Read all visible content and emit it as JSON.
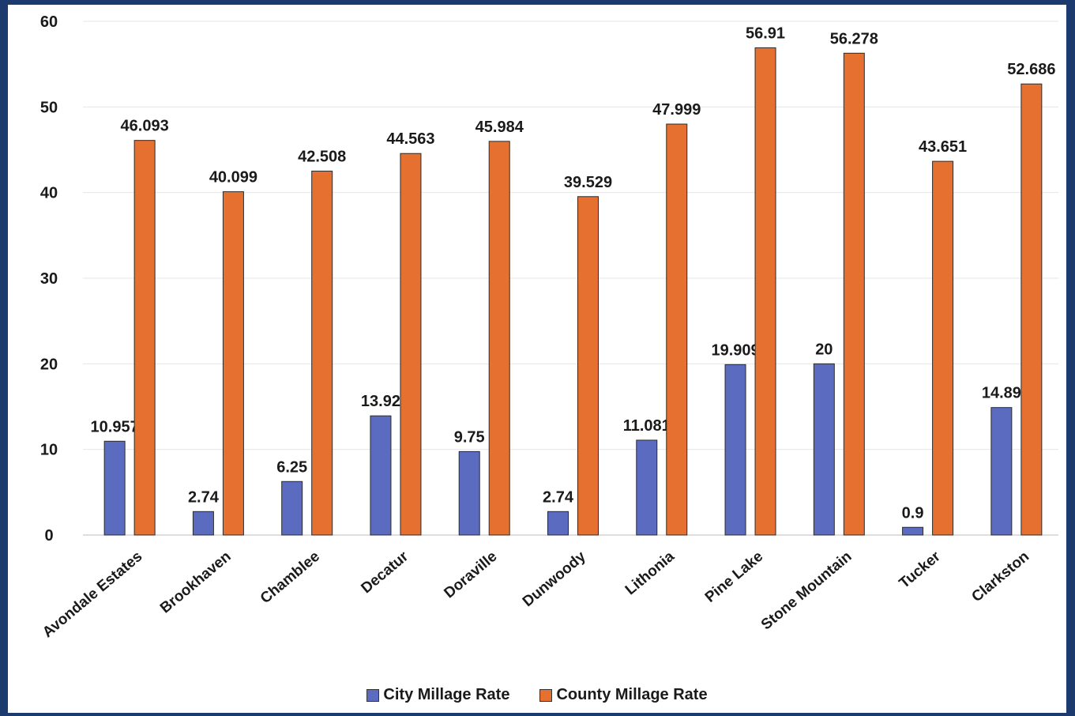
{
  "chart_data": {
    "type": "bar",
    "categories": [
      "Avondale Estates",
      "Brookhaven",
      "Chamblee",
      "Decatur",
      "Doraville",
      "Dunwoody",
      "Lithonia",
      "Pine Lake",
      "Stone Mountain",
      "Tucker",
      "Clarkston"
    ],
    "series": [
      {
        "name": "City Millage Rate",
        "color": "#5b6cc0",
        "values": [
          10.957,
          2.74,
          6.25,
          13.92,
          9.75,
          2.74,
          11.081,
          19.909,
          20,
          0.9,
          14.89
        ],
        "labels": [
          "10.957",
          "2.74",
          "6.25",
          "13.92",
          "9.75",
          "2.74",
          "11.081",
          "19.909",
          "20",
          "0.9",
          "14.89"
        ]
      },
      {
        "name": "County Millage Rate",
        "color": "#e5702f",
        "values": [
          46.093,
          40.099,
          42.508,
          44.563,
          45.984,
          39.529,
          47.999,
          56.91,
          56.278,
          43.651,
          52.686
        ],
        "labels": [
          "46.093",
          "40.099",
          "42.508",
          "44.563",
          "45.984",
          "39.529",
          "47.999",
          "56.91",
          "56.278",
          "43.651",
          "52.686"
        ]
      }
    ],
    "ylim": [
      0,
      60
    ],
    "yticks": [
      "0",
      "10",
      "20",
      "30",
      "40",
      "50",
      "60"
    ],
    "grid": true,
    "legend_position": "bottom"
  }
}
